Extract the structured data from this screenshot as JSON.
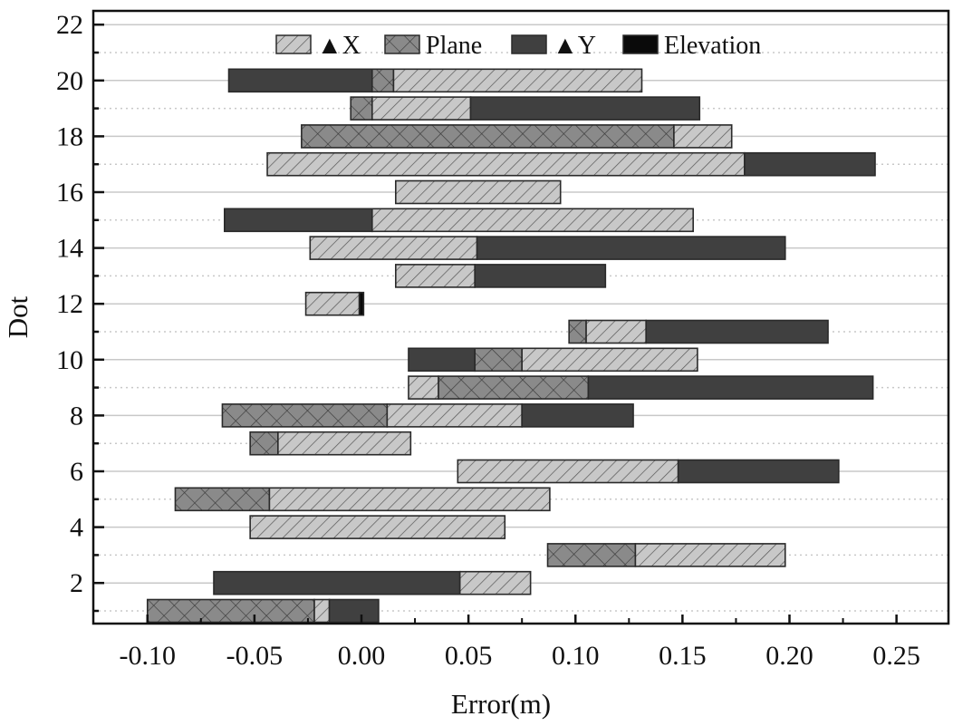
{
  "chart_data": {
    "type": "bar",
    "orientation": "horizontal-stacked-range",
    "title": "",
    "xlabel": "Error(m)",
    "ylabel": "Dot",
    "xlim": [
      -0.125,
      0.275
    ],
    "ylim": [
      0.55,
      22.5
    ],
    "xticks": [
      -0.1,
      -0.05,
      0.0,
      0.05,
      0.1,
      0.15,
      0.2,
      0.25
    ],
    "xtick_labels": [
      "-0.10",
      "-0.05",
      "0.00",
      "0.05",
      "0.10",
      "0.15",
      "0.20",
      "0.25"
    ],
    "yticks": [
      2,
      4,
      6,
      8,
      10,
      12,
      14,
      16,
      18,
      20,
      22
    ],
    "ytick_labels": [
      "2",
      "4",
      "6",
      "8",
      "10",
      "12",
      "14",
      "16",
      "18",
      "20",
      "22"
    ],
    "grid": "horizontal: solid at even dots, dotted at odd dots",
    "legend_position": "top-center",
    "legend": [
      {
        "key": "dX",
        "label": "▲X",
        "fill": "#c8c8c8",
        "pattern": "diagonal-hatch"
      },
      {
        "key": "plane",
        "label": "Plane",
        "fill": "#8a8a8a",
        "pattern": "cross-hatch"
      },
      {
        "key": "dY",
        "label": "▲Y",
        "fill": "#404040",
        "pattern": "solid"
      },
      {
        "key": "elev",
        "label": "Elevation",
        "fill": "#0a0a0a",
        "pattern": "solid"
      }
    ],
    "rows": [
      {
        "dot": 20,
        "segments": [
          {
            "s": "dY",
            "from": -0.062,
            "to": 0.005
          },
          {
            "s": "plane",
            "from": 0.005,
            "to": 0.015
          },
          {
            "s": "dX",
            "from": 0.015,
            "to": 0.131
          }
        ]
      },
      {
        "dot": 19,
        "segments": [
          {
            "s": "plane",
            "from": -0.005,
            "to": 0.005
          },
          {
            "s": "dX",
            "from": 0.005,
            "to": 0.051
          },
          {
            "s": "dY",
            "from": 0.051,
            "to": 0.158
          }
        ]
      },
      {
        "dot": 18,
        "segments": [
          {
            "s": "plane",
            "from": -0.028,
            "to": 0.146
          },
          {
            "s": "dX",
            "from": 0.146,
            "to": 0.173
          }
        ]
      },
      {
        "dot": 17,
        "segments": [
          {
            "s": "dX",
            "from": -0.044,
            "to": 0.179
          },
          {
            "s": "dY",
            "from": 0.179,
            "to": 0.24
          }
        ]
      },
      {
        "dot": 16,
        "segments": [
          {
            "s": "dX",
            "from": 0.016,
            "to": 0.093
          }
        ]
      },
      {
        "dot": 15,
        "segments": [
          {
            "s": "dY",
            "from": -0.064,
            "to": 0.005
          },
          {
            "s": "dX",
            "from": 0.005,
            "to": 0.155
          }
        ]
      },
      {
        "dot": 14,
        "segments": [
          {
            "s": "dX",
            "from": -0.024,
            "to": 0.054
          },
          {
            "s": "dY",
            "from": 0.054,
            "to": 0.198
          }
        ]
      },
      {
        "dot": 13,
        "segments": [
          {
            "s": "dX",
            "from": 0.016,
            "to": 0.053
          },
          {
            "s": "dY",
            "from": 0.053,
            "to": 0.114
          }
        ]
      },
      {
        "dot": 12,
        "segments": [
          {
            "s": "dX",
            "from": -0.026,
            "to": -0.001
          },
          {
            "s": "elev",
            "from": -0.001,
            "to": 0.001
          }
        ]
      },
      {
        "dot": 11,
        "segments": [
          {
            "s": "plane",
            "from": 0.097,
            "to": 0.105
          },
          {
            "s": "dX",
            "from": 0.105,
            "to": 0.133
          },
          {
            "s": "dY",
            "from": 0.133,
            "to": 0.218
          }
        ]
      },
      {
        "dot": 10,
        "segments": [
          {
            "s": "dY",
            "from": 0.022,
            "to": 0.053
          },
          {
            "s": "plane",
            "from": 0.053,
            "to": 0.075
          },
          {
            "s": "dX",
            "from": 0.075,
            "to": 0.157
          }
        ]
      },
      {
        "dot": 9,
        "segments": [
          {
            "s": "dX",
            "from": 0.022,
            "to": 0.036
          },
          {
            "s": "plane",
            "from": 0.036,
            "to": 0.106
          },
          {
            "s": "dY",
            "from": 0.106,
            "to": 0.239
          }
        ]
      },
      {
        "dot": 8,
        "segments": [
          {
            "s": "plane",
            "from": -0.065,
            "to": 0.012
          },
          {
            "s": "dX",
            "from": 0.012,
            "to": 0.075
          },
          {
            "s": "dY",
            "from": 0.075,
            "to": 0.127
          }
        ]
      },
      {
        "dot": 7,
        "segments": [
          {
            "s": "plane",
            "from": -0.052,
            "to": -0.039
          },
          {
            "s": "dX",
            "from": -0.039,
            "to": 0.023
          }
        ]
      },
      {
        "dot": 6,
        "segments": [
          {
            "s": "dX",
            "from": 0.045,
            "to": 0.148
          },
          {
            "s": "dY",
            "from": 0.148,
            "to": 0.223
          }
        ]
      },
      {
        "dot": 5,
        "segments": [
          {
            "s": "plane",
            "from": -0.087,
            "to": -0.043
          },
          {
            "s": "dX",
            "from": -0.043,
            "to": 0.088
          }
        ]
      },
      {
        "dot": 4,
        "segments": [
          {
            "s": "dX",
            "from": -0.052,
            "to": 0.067
          }
        ]
      },
      {
        "dot": 3,
        "segments": [
          {
            "s": "plane",
            "from": 0.087,
            "to": 0.128
          },
          {
            "s": "dX",
            "from": 0.128,
            "to": 0.198
          }
        ]
      },
      {
        "dot": 2,
        "segments": [
          {
            "s": "dY",
            "from": -0.069,
            "to": 0.046
          },
          {
            "s": "dX",
            "from": 0.046,
            "to": 0.079
          }
        ]
      },
      {
        "dot": 1,
        "segments": [
          {
            "s": "plane",
            "from": -0.1,
            "to": -0.022
          },
          {
            "s": "dX",
            "from": -0.022,
            "to": -0.015
          },
          {
            "s": "dY",
            "from": -0.015,
            "to": 0.008
          }
        ]
      }
    ]
  }
}
